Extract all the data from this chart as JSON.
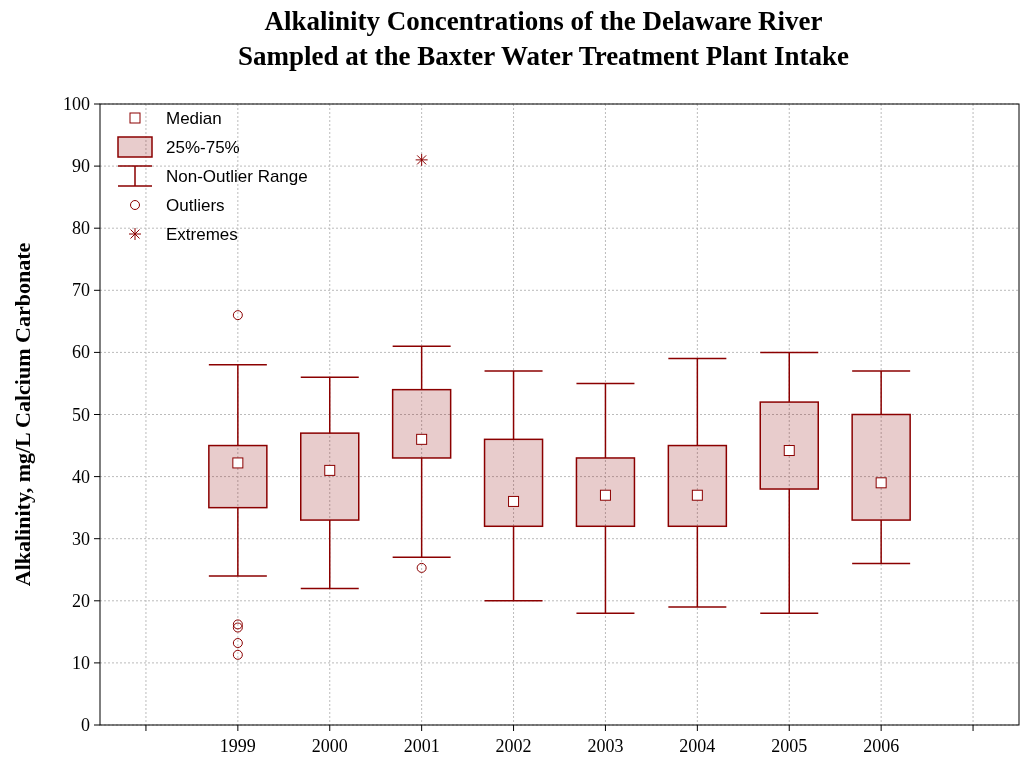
{
  "chart_data": {
    "type": "box",
    "title": "Alkalinity Concentrations of the Delaware River\nSampled at the Baxter Water Treatment Plant Intake",
    "ylabel": "Alkalinity, mg/L Calcium Carbonate",
    "categories": [
      null,
      "1999",
      "2000",
      "2001",
      "2002",
      "2003",
      "2004",
      "2005",
      "2006",
      null
    ],
    "ylim": [
      0,
      100
    ],
    "yticks": [
      0,
      10,
      20,
      30,
      40,
      50,
      60,
      70,
      80,
      90,
      100
    ],
    "grid": true,
    "legend": "top left",
    "annotations": [
      "Median",
      "25%-75%",
      "Non-Outlier Range",
      "Outliers"
    ],
    "series": [
      {
        "type": "box",
        "color": "#8b0000",
        "boxes": [
          null,
          {
            "low": 24,
            "q1": 35,
            "median": 42.2,
            "q3": 45,
            "high": 58,
            "outliers": [
              66,
              16.2,
              15.7,
              13.2,
              11.3
            ]
          },
          {
            "low": 22,
            "q1": 33,
            "median": 41,
            "q3": 47,
            "high": 56
          },
          {
            "low": 27,
            "q1": 43,
            "median": 46,
            "q3": 54,
            "high": 61,
            "outliers": [
              25.3
            ]
          },
          {
            "low": 20,
            "q1": 32,
            "median": 36,
            "q3": 46,
            "high": 57
          },
          {
            "low": 18,
            "q1": 32,
            "median": 37,
            "q3": 43,
            "high": 55
          },
          {
            "low": 19,
            "q1": 32,
            "median": 37,
            "q3": 45,
            "high": 59
          },
          {
            "low": 18,
            "q1": 38,
            "median": 44.2,
            "q3": 52,
            "high": 60
          },
          {
            "low": 26,
            "q1": 33,
            "median": 39,
            "q3": 50,
            "high": 57
          },
          null
        ]
      },
      {
        "type": "scatter",
        "name": "Extremes",
        "color": "#8b0000",
        "marker": "cross",
        "values": [
          null,
          null,
          null,
          91,
          null,
          null,
          null,
          null,
          null,
          null
        ]
      }
    ]
  }
}
